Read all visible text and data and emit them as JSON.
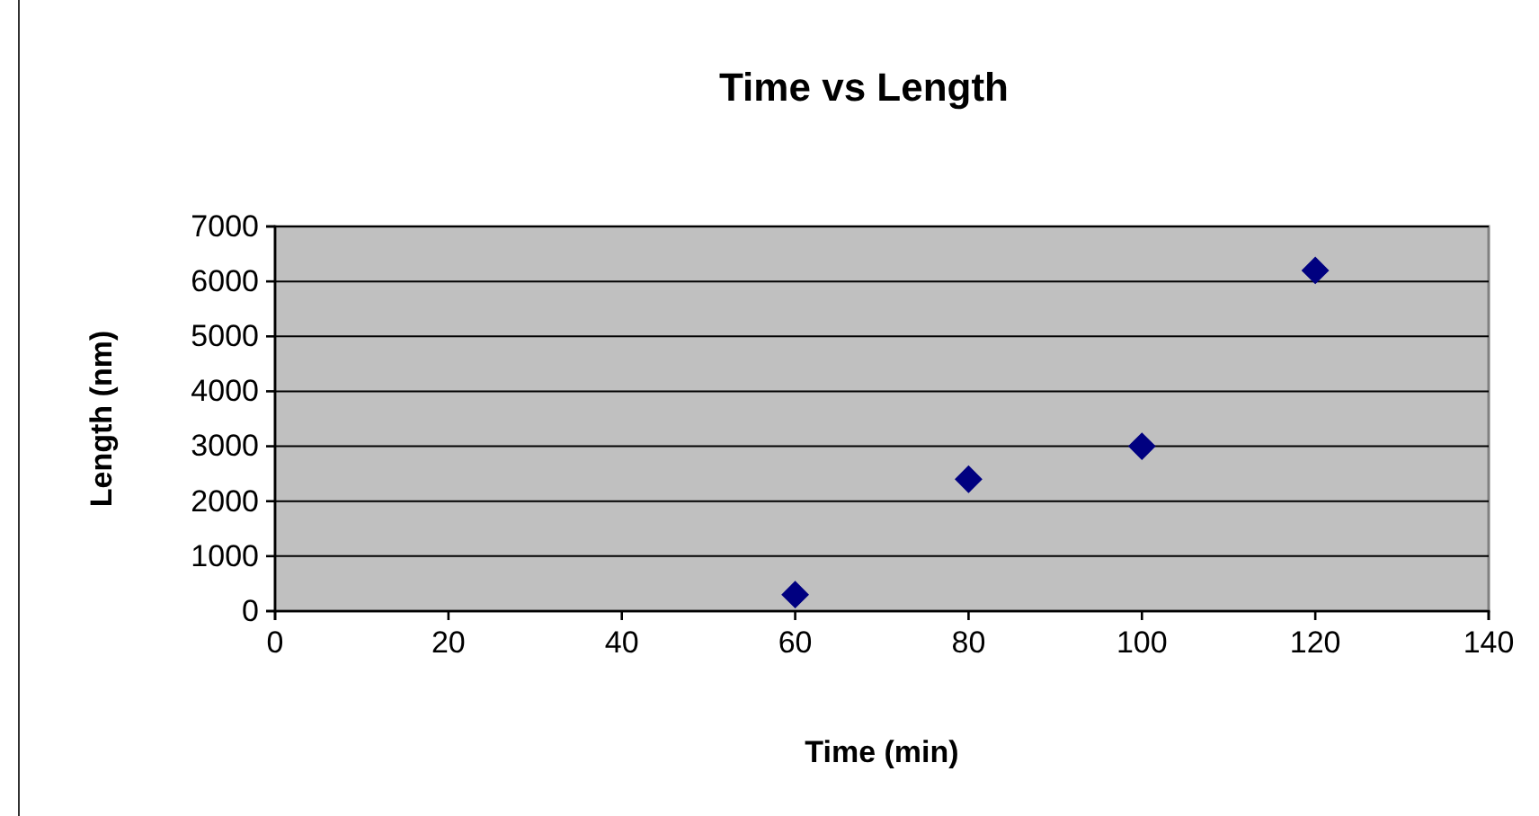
{
  "chart_data": {
    "type": "scatter",
    "title": "Time vs Length",
    "xlabel": "Time (min)",
    "ylabel": "Length (nm)",
    "x": [
      60,
      80,
      100,
      120
    ],
    "series": [
      {
        "color": "#000080",
        "values": [
          300,
          2400,
          3000,
          6200
        ]
      }
    ],
    "xlim": [
      0,
      140
    ],
    "xticks": [
      0,
      20,
      40,
      60,
      80,
      100,
      120,
      140
    ],
    "ylim": [
      0,
      7000
    ],
    "yticks": [
      0,
      1000,
      2000,
      3000,
      4000,
      5000,
      6000,
      7000
    ],
    "grid": "y",
    "marker": "diamond"
  }
}
